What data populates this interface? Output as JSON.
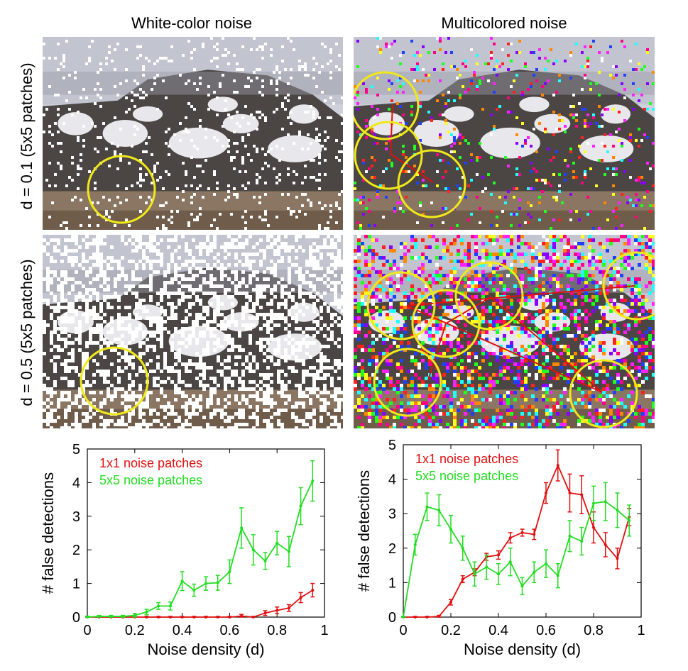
{
  "headers": {
    "left_title": "White-color noise",
    "right_title": "Multicolored noise"
  },
  "rows": [
    {
      "label": "d = 0.1 (5x5 patches)",
      "density": 0.1
    },
    {
      "label": "d = 0.5 (5x5 patches)",
      "density": 0.5
    }
  ],
  "colors": {
    "green": "#22dd22",
    "red": "#e01010",
    "circle": "#f0e81a",
    "arrow": "#e01010"
  },
  "chart_data": [
    {
      "type": "line",
      "xlabel": "Noise density (d)",
      "ylabel": "# false detections",
      "xlim": [
        0,
        1
      ],
      "ylim": [
        0,
        5
      ],
      "xticks": [
        "0",
        "0.2",
        "0.4",
        "0.6",
        "0.8",
        "1"
      ],
      "yticks": [
        "0",
        "1",
        "2",
        "3",
        "4",
        "5"
      ],
      "legend_placement": "top-left",
      "baseline_dashed": true,
      "series": [
        {
          "name": "1x1 noise patches",
          "color": "#e01010",
          "x": [
            0,
            0.05,
            0.1,
            0.15,
            0.2,
            0.25,
            0.3,
            0.35,
            0.4,
            0.45,
            0.5,
            0.55,
            0.6,
            0.65,
            0.7,
            0.75,
            0.8,
            0.85,
            0.9,
            0.95
          ],
          "y": [
            0,
            0,
            0,
            0,
            0,
            0,
            0,
            0,
            0,
            0,
            0,
            0,
            0,
            0.03,
            0,
            0.12,
            0.2,
            0.27,
            0.58,
            0.8
          ],
          "err": [
            0.02,
            0.02,
            0.02,
            0.02,
            0.02,
            0.02,
            0.02,
            0.02,
            0.02,
            0.02,
            0.02,
            0.02,
            0.02,
            0.05,
            0.02,
            0.07,
            0.1,
            0.1,
            0.15,
            0.2
          ]
        },
        {
          "name": "5x5 noise patches",
          "color": "#22dd22",
          "x": [
            0,
            0.05,
            0.1,
            0.15,
            0.2,
            0.25,
            0.3,
            0.35,
            0.4,
            0.45,
            0.5,
            0.55,
            0.6,
            0.65,
            0.7,
            0.75,
            0.8,
            0.85,
            0.9,
            0.95
          ],
          "y": [
            0,
            0.02,
            0.02,
            0.02,
            0.05,
            0.15,
            0.33,
            0.33,
            1.07,
            0.8,
            1.0,
            1.02,
            1.35,
            2.65,
            2.0,
            1.67,
            2.2,
            1.95,
            3.3,
            4.05
          ],
          "err": [
            0.03,
            0.03,
            0.03,
            0.03,
            0.05,
            0.08,
            0.1,
            0.12,
            0.28,
            0.18,
            0.2,
            0.22,
            0.35,
            0.6,
            0.45,
            0.25,
            0.35,
            0.45,
            0.55,
            0.6
          ]
        }
      ]
    },
    {
      "type": "line",
      "xlabel": "Noise density (d)",
      "ylabel": "# false detections",
      "xlim": [
        0,
        1
      ],
      "ylim": [
        0,
        5
      ],
      "xticks": [
        "0",
        "0.2",
        "0.4",
        "0.6",
        "0.8",
        "1"
      ],
      "yticks": [
        "0",
        "1",
        "2",
        "3",
        "4",
        "5"
      ],
      "legend_placement": "top-left",
      "baseline_dashed": false,
      "series": [
        {
          "name": "1x1 noise patches",
          "color": "#e01010",
          "x": [
            0,
            0.05,
            0.1,
            0.15,
            0.2,
            0.25,
            0.3,
            0.35,
            0.4,
            0.45,
            0.5,
            0.55,
            0.6,
            0.65,
            0.7,
            0.75,
            0.8,
            0.85,
            0.9,
            0.95
          ],
          "y": [
            0,
            0,
            0,
            0.02,
            0.43,
            1.1,
            1.3,
            1.75,
            1.8,
            2.3,
            2.45,
            2.4,
            3.6,
            4.4,
            3.6,
            3.55,
            2.6,
            2.1,
            1.7,
            2.9
          ],
          "err": [
            0.02,
            0.02,
            0.02,
            0.03,
            0.08,
            0.1,
            0.1,
            0.1,
            0.12,
            0.15,
            0.1,
            0.15,
            0.3,
            0.45,
            0.55,
            0.55,
            0.45,
            0.35,
            0.3,
            0.25
          ]
        },
        {
          "name": "5x5 noise patches",
          "color": "#22dd22",
          "x": [
            0,
            0.05,
            0.1,
            0.15,
            0.2,
            0.25,
            0.3,
            0.35,
            0.4,
            0.45,
            0.5,
            0.55,
            0.6,
            0.65,
            0.7,
            0.75,
            0.8,
            0.85,
            0.9,
            0.95
          ],
          "y": [
            0,
            2.1,
            3.2,
            3.1,
            2.55,
            2.0,
            1.25,
            1.45,
            1.25,
            1.6,
            0.9,
            1.3,
            1.55,
            1.2,
            2.35,
            2.2,
            3.3,
            3.35,
            3.1,
            2.8
          ],
          "err": [
            0.02,
            0.3,
            0.4,
            0.45,
            0.4,
            0.35,
            0.35,
            0.35,
            0.3,
            0.4,
            0.25,
            0.3,
            0.4,
            0.35,
            0.45,
            0.4,
            0.5,
            0.55,
            0.5,
            0.45
          ]
        }
      ]
    }
  ]
}
